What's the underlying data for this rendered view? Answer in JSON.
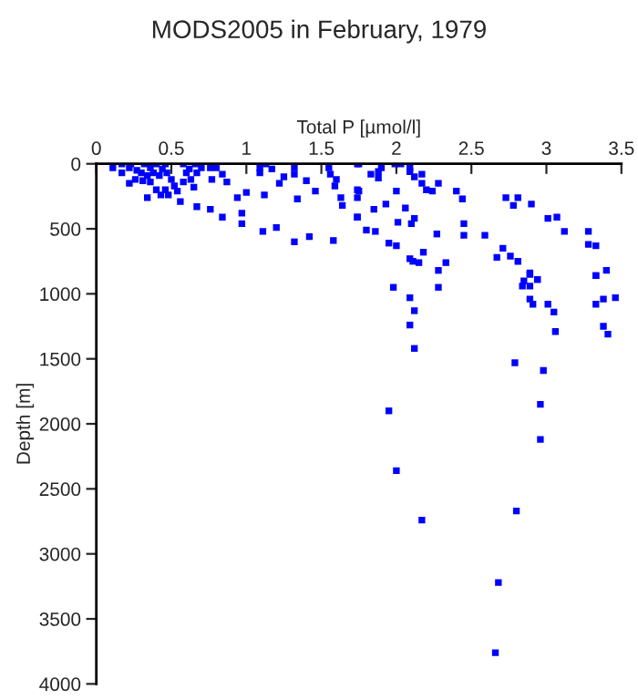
{
  "chart_data": {
    "type": "scatter",
    "title": "MODS2005 in February, 1979",
    "xlabel": "Total P [µmol/l]",
    "ylabel": "Depth [m]",
    "xlim": [
      0,
      3.5
    ],
    "xticks": [
      0,
      0.5,
      1,
      1.5,
      2,
      2.5,
      3,
      3.5
    ],
    "ylim": [
      4000,
      0
    ],
    "yticks": [
      0,
      500,
      1000,
      1500,
      2000,
      2500,
      3000,
      3500,
      4000
    ],
    "grid": false,
    "marker": "square",
    "series": [
      {
        "color": "#0000ff",
        "x": [
          1.95,
          2.0,
          2.17,
          2.8,
          2.68,
          2.66,
          1.98,
          2.28,
          2.09,
          2.12,
          2.09,
          2.12,
          2.79,
          2.98,
          2.96,
          2.96,
          2.89,
          2.85,
          2.94,
          2.84,
          2.89,
          2.89,
          2.91,
          3.01,
          3.05,
          3.06,
          3.33,
          3.33,
          3.38,
          3.46,
          3.38,
          3.41,
          1.74,
          1.83,
          1.88,
          1.88,
          1.9,
          1.99,
          2.03,
          2.09,
          2.09,
          2.12,
          2.17,
          2.17,
          2.28,
          2.2,
          2.24,
          1.74,
          1.74,
          2.0,
          2.4,
          2.44,
          2.73,
          2.81,
          2.78,
          2.9,
          1.93,
          2.06,
          1.85,
          1.74,
          2.12,
          2.01,
          2.1,
          2.45,
          3.01,
          3.07,
          1.8,
          1.86,
          2.27,
          2.45,
          2.59,
          3.12,
          3.28,
          1.95,
          2.0,
          3.28,
          3.33,
          2.18,
          2.71,
          2.09,
          2.11,
          2.15,
          2.33,
          2.67,
          2.76,
          2.81,
          2.28,
          2.89,
          2.94,
          3.33,
          3.4,
          0.11,
          0.17,
          0.17,
          0.22,
          0.23,
          0.27,
          0.3,
          0.32,
          0.34,
          0.36,
          0.22,
          0.26,
          0.31,
          0.38,
          0.4,
          0.42,
          0.44,
          0.46,
          0.47,
          0.36,
          0.34,
          0.4,
          0.43,
          0.46,
          0.48,
          0.5,
          0.52,
          0.54,
          0.56,
          0.58,
          0.58,
          0.6,
          0.62,
          0.63,
          0.65,
          0.66,
          0.67,
          0.7,
          0.76,
          0.8,
          0.84,
          0.87,
          0.77,
          0.67,
          0.76,
          0.84,
          0.97,
          0.97,
          0.94,
          1.0,
          1.09,
          1.09,
          1.11,
          1.12,
          1.13,
          1.17,
          1.2,
          1.22,
          1.25,
          1.32,
          1.32,
          1.32,
          1.34,
          1.4,
          1.42,
          1.46,
          1.55,
          1.56,
          1.58,
          1.59,
          1.6,
          1.63,
          1.64,
          1.75,
          1.75,
          1.74
        ],
        "values": [
          1900,
          2360,
          2740,
          2670,
          3220,
          3760,
          950,
          950,
          1030,
          1130,
          1240,
          1420,
          1530,
          1590,
          1850,
          2120,
          840,
          900,
          890,
          940,
          940,
          1040,
          1080,
          1080,
          1140,
          1290,
          860,
          1080,
          1040,
          1030,
          1250,
          1310,
          0,
          80,
          60,
          110,
          30,
          0,
          0,
          30,
          60,
          100,
          80,
          150,
          150,
          200,
          210,
          200,
          260,
          210,
          210,
          270,
          260,
          260,
          320,
          310,
          310,
          340,
          350,
          410,
          420,
          450,
          460,
          460,
          420,
          410,
          510,
          520,
          540,
          550,
          550,
          520,
          520,
          610,
          630,
          620,
          630,
          680,
          650,
          730,
          750,
          760,
          760,
          720,
          710,
          750,
          820,
          850,
          890,
          860,
          820,
          30,
          0,
          70,
          30,
          0,
          50,
          70,
          0,
          90,
          30,
          150,
          120,
          130,
          70,
          0,
          90,
          40,
          0,
          70,
          140,
          260,
          200,
          240,
          200,
          240,
          120,
          170,
          210,
          290,
          140,
          0,
          70,
          40,
          120,
          180,
          0,
          70,
          30,
          30,
          30,
          80,
          140,
          120,
          330,
          350,
          410,
          460,
          380,
          260,
          220,
          30,
          70,
          520,
          240,
          0,
          40,
          490,
          150,
          100,
          30,
          80,
          600,
          270,
          130,
          560,
          210,
          30,
          80,
          590,
          170,
          120,
          260,
          320,
          210,
          0,
          410
        ]
      }
    ]
  }
}
